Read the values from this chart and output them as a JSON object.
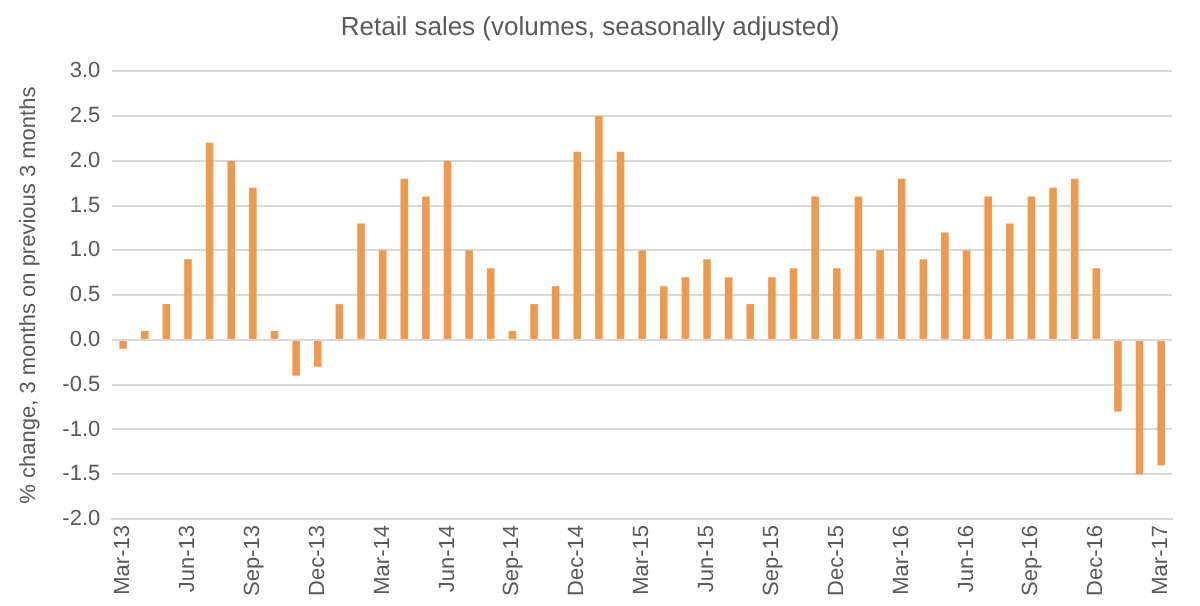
{
  "chart_data": {
    "type": "bar",
    "title": "Retail sales (volumes, seasonally adjusted)",
    "ylabel": "% change, 3 months on previous 3 months",
    "categories": [
      "Mar-13",
      null,
      null,
      "Jun-13",
      null,
      null,
      "Sep-13",
      null,
      null,
      "Dec-13",
      null,
      null,
      "Mar-14",
      null,
      null,
      "Jun-14",
      null,
      null,
      "Sep-14",
      null,
      null,
      "Dec-14",
      null,
      null,
      "Mar-15",
      null,
      null,
      "Jun-15",
      null,
      null,
      "Sep-15",
      null,
      null,
      "Dec-15",
      null,
      null,
      "Mar-16",
      null,
      null,
      "Jun-16",
      null,
      null,
      "Sep-16",
      null,
      null,
      "Dec-16",
      null,
      null,
      "Mar-17"
    ],
    "values": [
      -0.1,
      0.1,
      0.4,
      0.9,
      2.2,
      2.0,
      1.7,
      0.1,
      -0.4,
      -0.3,
      0.4,
      1.3,
      1.0,
      1.8,
      1.6,
      2.0,
      1.0,
      0.8,
      0.1,
      0.4,
      0.6,
      2.1,
      2.5,
      2.1,
      1.0,
      0.6,
      0.7,
      0.9,
      0.7,
      0.4,
      0.7,
      0.8,
      1.6,
      0.8,
      1.6,
      1.0,
      1.8,
      0.9,
      1.2,
      1.0,
      1.6,
      1.3,
      1.6,
      1.7,
      1.8,
      0.8,
      -0.8,
      -1.5,
      -1.4
    ],
    "color": "#ed9a4e",
    "ylim": [
      -2,
      3
    ],
    "yticks": [
      {
        "value": -2,
        "label": "-2.0"
      },
      {
        "value": -1.5,
        "label": "-1.5"
      },
      {
        "value": -1,
        "label": "-1.0"
      },
      {
        "value": -0.5,
        "label": "-0.5"
      },
      {
        "value": 0,
        "label": "0.0"
      },
      {
        "value": 0.5,
        "label": "0.5"
      },
      {
        "value": 1,
        "label": "1.0"
      },
      {
        "value": 1.5,
        "label": "1.5"
      },
      {
        "value": 2,
        "label": "2.0"
      },
      {
        "value": 2.5,
        "label": "2.5"
      },
      {
        "value": 3,
        "label": "3.0"
      }
    ],
    "grid": "y",
    "legend": false
  }
}
